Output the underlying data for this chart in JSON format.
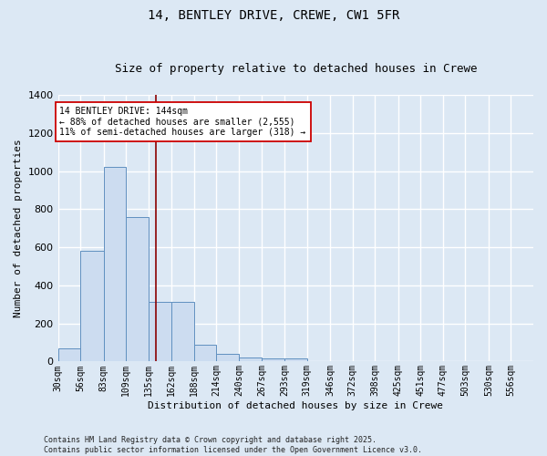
{
  "title": "14, BENTLEY DRIVE, CREWE, CW1 5FR",
  "subtitle": "Size of property relative to detached houses in Crewe",
  "xlabel": "Distribution of detached houses by size in Crewe",
  "ylabel": "Number of detached properties",
  "bin_labels": [
    "30sqm",
    "56sqm",
    "83sqm",
    "109sqm",
    "135sqm",
    "162sqm",
    "188sqm",
    "214sqm",
    "240sqm",
    "267sqm",
    "293sqm",
    "319sqm",
    "346sqm",
    "372sqm",
    "398sqm",
    "425sqm",
    "451sqm",
    "477sqm",
    "503sqm",
    "530sqm",
    "556sqm"
  ],
  "bin_edges": [
    30,
    56,
    83,
    109,
    135,
    162,
    188,
    214,
    240,
    267,
    293,
    319,
    346,
    372,
    398,
    425,
    451,
    477,
    503,
    530,
    556
  ],
  "bar_heights": [
    70,
    580,
    1020,
    760,
    315,
    315,
    90,
    40,
    20,
    15,
    15,
    0,
    0,
    0,
    0,
    0,
    0,
    0,
    0,
    0,
    0
  ],
  "bar_color": "#ccdcf0",
  "bar_edge_color": "#6090c0",
  "vline_x": 144,
  "vline_color": "#8b0000",
  "ylim": [
    0,
    1400
  ],
  "xlim_left": 30,
  "xlim_right": 582,
  "annotation_title": "14 BENTLEY DRIVE: 144sqm",
  "annotation_line1": "← 88% of detached houses are smaller (2,555)",
  "annotation_line2": "11% of semi-detached houses are larger (318) →",
  "annotation_box_color": "#ffffff",
  "annotation_border_color": "#cc0000",
  "footer_line1": "Contains HM Land Registry data © Crown copyright and database right 2025.",
  "footer_line2": "Contains public sector information licensed under the Open Government Licence v3.0.",
  "bg_color": "#dce8f4",
  "grid_color": "#ffffff",
  "title_fontsize": 10,
  "subtitle_fontsize": 9,
  "axis_label_fontsize": 8,
  "tick_fontsize": 7,
  "annotation_fontsize": 7,
  "footer_fontsize": 6
}
